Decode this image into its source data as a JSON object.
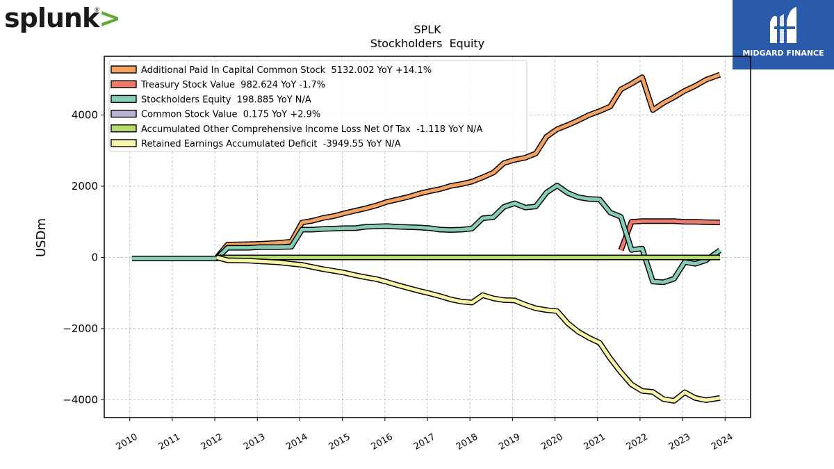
{
  "logo": {
    "brand": "splunk",
    "brand_mark": ">",
    "registered": "®"
  },
  "badge": {
    "text": "MIDGARD FINANCE"
  },
  "chart_data": {
    "type": "line",
    "title": "SPLK",
    "subtitle": "Stockholders  Equity",
    "xlabel": "",
    "ylabel": "USDm",
    "xlim": [
      2009.4,
      2024.6
    ],
    "ylim": [
      -4500,
      5650
    ],
    "x_ticks": [
      "2010",
      "2011",
      "2012",
      "2013",
      "2014",
      "2015",
      "2016",
      "2017",
      "2018",
      "2019",
      "2020",
      "2021",
      "2022",
      "2023",
      "2024"
    ],
    "y_ticks": [
      -4000,
      -2000,
      0,
      2000,
      4000
    ],
    "grid": true,
    "legend_position": "top-left",
    "series": [
      {
        "name": "Additional Paid In Capital Common Stock  5132.002 YoY +14.1%",
        "color": "#f4a261",
        "points": [
          [
            2012.05,
            0
          ],
          [
            2012.3,
            360
          ],
          [
            2012.8,
            370
          ],
          [
            2013.05,
            380
          ],
          [
            2013.5,
            410
          ],
          [
            2013.8,
            440
          ],
          [
            2014.05,
            980
          ],
          [
            2014.3,
            1030
          ],
          [
            2014.55,
            1110
          ],
          [
            2014.8,
            1160
          ],
          [
            2015.05,
            1240
          ],
          [
            2015.3,
            1310
          ],
          [
            2015.55,
            1380
          ],
          [
            2015.8,
            1460
          ],
          [
            2016.05,
            1560
          ],
          [
            2016.3,
            1630
          ],
          [
            2016.55,
            1700
          ],
          [
            2016.8,
            1790
          ],
          [
            2017.05,
            1860
          ],
          [
            2017.3,
            1920
          ],
          [
            2017.55,
            2010
          ],
          [
            2017.8,
            2060
          ],
          [
            2018.05,
            2130
          ],
          [
            2018.3,
            2250
          ],
          [
            2018.55,
            2380
          ],
          [
            2018.8,
            2650
          ],
          [
            2019.05,
            2740
          ],
          [
            2019.3,
            2800
          ],
          [
            2019.55,
            2920
          ],
          [
            2019.8,
            3390
          ],
          [
            2020.05,
            3600
          ],
          [
            2020.3,
            3720
          ],
          [
            2020.55,
            3850
          ],
          [
            2020.8,
            4000
          ],
          [
            2021.05,
            4110
          ],
          [
            2021.3,
            4240
          ],
          [
            2021.55,
            4720
          ],
          [
            2021.8,
            4880
          ],
          [
            2022.05,
            5060
          ],
          [
            2022.3,
            4140
          ],
          [
            2022.55,
            4340
          ],
          [
            2022.8,
            4500
          ],
          [
            2023.05,
            4680
          ],
          [
            2023.3,
            4820
          ],
          [
            2023.55,
            4990
          ],
          [
            2023.88,
            5132
          ]
        ]
      },
      {
        "name": "Treasury Stock Value  982.624 YoY -1.7%",
        "color": "#f07b6c",
        "points": [
          [
            2021.55,
            200
          ],
          [
            2021.8,
            1000
          ],
          [
            2022.05,
            1020
          ],
          [
            2022.3,
            1020
          ],
          [
            2022.55,
            1020
          ],
          [
            2022.8,
            1020
          ],
          [
            2023.05,
            1000
          ],
          [
            2023.3,
            1000
          ],
          [
            2023.55,
            990
          ],
          [
            2023.88,
            983
          ]
        ]
      },
      {
        "name": "Stockholders Equity  198.885 YoY N/A",
        "color": "#86cdb8",
        "points": [
          [
            2010.05,
            -30
          ],
          [
            2011.05,
            -30
          ],
          [
            2012.05,
            -30
          ],
          [
            2012.3,
            270
          ],
          [
            2012.8,
            270
          ],
          [
            2013.05,
            290
          ],
          [
            2013.5,
            290
          ],
          [
            2013.8,
            300
          ],
          [
            2014.05,
            780
          ],
          [
            2014.3,
            780
          ],
          [
            2014.55,
            800
          ],
          [
            2014.8,
            810
          ],
          [
            2015.05,
            820
          ],
          [
            2015.3,
            820
          ],
          [
            2015.55,
            860
          ],
          [
            2015.8,
            870
          ],
          [
            2016.05,
            880
          ],
          [
            2016.3,
            860
          ],
          [
            2016.55,
            850
          ],
          [
            2016.8,
            840
          ],
          [
            2017.05,
            820
          ],
          [
            2017.3,
            780
          ],
          [
            2017.55,
            770
          ],
          [
            2017.8,
            780
          ],
          [
            2018.05,
            810
          ],
          [
            2018.3,
            1100
          ],
          [
            2018.55,
            1130
          ],
          [
            2018.8,
            1420
          ],
          [
            2019.05,
            1520
          ],
          [
            2019.3,
            1400
          ],
          [
            2019.55,
            1430
          ],
          [
            2019.8,
            1820
          ],
          [
            2020.05,
            2020
          ],
          [
            2020.3,
            1810
          ],
          [
            2020.55,
            1690
          ],
          [
            2020.8,
            1640
          ],
          [
            2021.05,
            1630
          ],
          [
            2021.3,
            1260
          ],
          [
            2021.55,
            1140
          ],
          [
            2021.8,
            210
          ],
          [
            2022.05,
            250
          ],
          [
            2022.3,
            -680
          ],
          [
            2022.55,
            -700
          ],
          [
            2022.8,
            -600
          ],
          [
            2023.05,
            -130
          ],
          [
            2023.3,
            -180
          ],
          [
            2023.55,
            -80
          ],
          [
            2023.88,
            199
          ]
        ]
      },
      {
        "name": "Common Stock Value  0.175 YoY +2.9%",
        "color": "#b9b3d6",
        "points": [
          [
            2012.05,
            0
          ],
          [
            2023.88,
            0
          ]
        ]
      },
      {
        "name": "Accumulated Other Comprehensive Income Loss Net Of Tax  -1.118 YoY N/A",
        "color": "#b4db6b",
        "points": [
          [
            2012.05,
            0
          ],
          [
            2014.05,
            0
          ],
          [
            2016.05,
            0
          ],
          [
            2018.05,
            0
          ],
          [
            2020.05,
            0
          ],
          [
            2022.05,
            0
          ],
          [
            2023.88,
            -1
          ]
        ]
      },
      {
        "name": "Retained Earnings Accumulated Deficit  -3949.55 YoY N/A",
        "color": "#fbf6a7",
        "points": [
          [
            2012.05,
            0
          ],
          [
            2012.3,
            -80
          ],
          [
            2012.8,
            -90
          ],
          [
            2013.05,
            -110
          ],
          [
            2013.5,
            -140
          ],
          [
            2013.8,
            -180
          ],
          [
            2014.05,
            -210
          ],
          [
            2014.3,
            -270
          ],
          [
            2014.55,
            -330
          ],
          [
            2014.8,
            -380
          ],
          [
            2015.05,
            -430
          ],
          [
            2015.3,
            -500
          ],
          [
            2015.55,
            -560
          ],
          [
            2015.8,
            -610
          ],
          [
            2016.05,
            -690
          ],
          [
            2016.3,
            -780
          ],
          [
            2016.55,
            -860
          ],
          [
            2016.8,
            -940
          ],
          [
            2017.05,
            -1010
          ],
          [
            2017.3,
            -1090
          ],
          [
            2017.55,
            -1180
          ],
          [
            2017.8,
            -1240
          ],
          [
            2018.05,
            -1270
          ],
          [
            2018.3,
            -1060
          ],
          [
            2018.55,
            -1150
          ],
          [
            2018.8,
            -1200
          ],
          [
            2019.05,
            -1210
          ],
          [
            2019.3,
            -1330
          ],
          [
            2019.55,
            -1430
          ],
          [
            2019.8,
            -1480
          ],
          [
            2020.05,
            -1510
          ],
          [
            2020.3,
            -1850
          ],
          [
            2020.55,
            -2090
          ],
          [
            2020.8,
            -2260
          ],
          [
            2021.05,
            -2400
          ],
          [
            2021.3,
            -2840
          ],
          [
            2021.55,
            -3230
          ],
          [
            2021.8,
            -3570
          ],
          [
            2022.05,
            -3750
          ],
          [
            2022.3,
            -3780
          ],
          [
            2022.55,
            -3980
          ],
          [
            2022.8,
            -4030
          ],
          [
            2023.05,
            -3790
          ],
          [
            2023.3,
            -3950
          ],
          [
            2023.55,
            -4010
          ],
          [
            2023.88,
            -3950
          ]
        ]
      }
    ]
  }
}
